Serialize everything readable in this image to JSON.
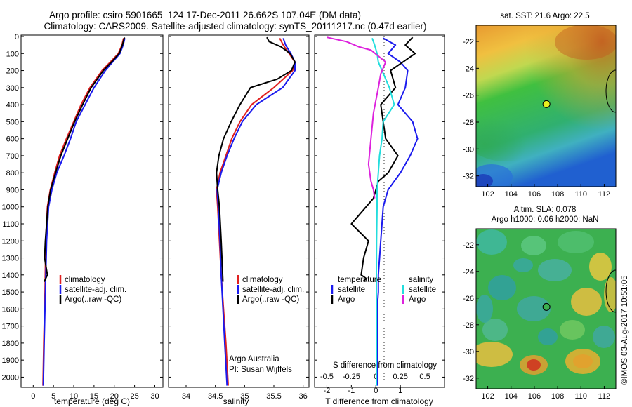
{
  "header": {
    "line1": "Argo profile: csiro 5901665_124 17-Dec-2011 26.662S 107.04E (DM data)",
    "line2": "Climatology: CARS2009. Satellite-adjusted climatology: synTS_20111217.nc (0.47d earlier)"
  },
  "colors": {
    "climatology": "#e02020",
    "satellite": "#1a1aee",
    "argo": "#000000",
    "sal_sat": "#22dddd",
    "sal_argo": "#dd22dd",
    "marker": "#e8f020"
  },
  "labels": {
    "credit_line1": "Argo Australia",
    "credit_line2": "PI: Susan Wijffels",
    "leg_temperature": "temperature",
    "leg_salinity": "salinity",
    "leg_satellite": "satellite",
    "leg_argo": "Argo",
    "diff_s": "S difference from climatology",
    "diff_t": "T difference from climatology",
    "imos": "©IMOS 03-Aug-2017 10:51:05",
    "sst_title": "sat. SST: 21.6 Argo: 22.5",
    "sla_title1": "Altim. SLA: 0.078",
    "sla_title2": "Argo h1000: 0.06 h2000: NaN"
  },
  "chart_data": [
    {
      "type": "line",
      "xlabel": "temperature (deg C)",
      "ylabel": "",
      "xlim": [
        -3,
        32
      ],
      "ylim": [
        2060,
        0
      ],
      "xticks": [
        0,
        5,
        10,
        15,
        20,
        25,
        30
      ],
      "yticks": [
        0,
        100,
        200,
        300,
        400,
        500,
        600,
        700,
        800,
        900,
        1000,
        1100,
        1200,
        1300,
        1400,
        1500,
        1600,
        1700,
        1800,
        1900,
        2000
      ],
      "legend": [
        "climatology",
        "satellite-adj. clim.",
        "Argo(..raw -QC)"
      ],
      "legend_position": "lower-middle",
      "series": [
        {
          "name": "climatology",
          "x": [
            22.3,
            21.9,
            21.0,
            19.0,
            17.0,
            14.0,
            11.8,
            10.0,
            8.2,
            6.5,
            5.3,
            4.2,
            3.5,
            3.1,
            2.9,
            2.6,
            2.4
          ],
          "y": [
            10,
            50,
            100,
            150,
            200,
            300,
            400,
            500,
            600,
            700,
            800,
            900,
            1000,
            1200,
            1500,
            1800,
            2050
          ]
        },
        {
          "name": "satellite-adj. clim.",
          "x": [
            22.6,
            22.2,
            21.4,
            19.6,
            17.8,
            15.0,
            12.8,
            10.6,
            9.2,
            7.6,
            5.8,
            4.6,
            3.8,
            3.3,
            3.0,
            2.7,
            2.5
          ],
          "y": [
            10,
            50,
            100,
            150,
            200,
            300,
            400,
            500,
            600,
            700,
            800,
            900,
            1000,
            1200,
            1500,
            1800,
            2050
          ]
        },
        {
          "name": "Argo(..raw -QC)",
          "x": [
            22.5,
            22.0,
            21.2,
            19.3,
            17.3,
            14.3,
            12.2,
            10.2,
            8.5,
            6.8,
            5.5,
            4.3,
            3.6,
            3.0,
            2.8,
            3.5,
            2.7
          ],
          "y": [
            5,
            50,
            100,
            150,
            200,
            300,
            400,
            500,
            600,
            700,
            800,
            900,
            1000,
            1200,
            1300,
            1400,
            1440
          ]
        }
      ]
    },
    {
      "type": "line",
      "xlabel": "salinity",
      "ylabel": "",
      "xlim": [
        33.7,
        36.1
      ],
      "ylim": [
        2060,
        0
      ],
      "xticks": [
        34,
        34.5,
        35,
        35.5,
        36
      ],
      "xtick_labels": [
        "34",
        "34.5",
        "35",
        "35.5",
        "36"
      ],
      "legend": [
        "climatology",
        "satellite-adj. clim.",
        "Argo(..raw -QC)"
      ],
      "legend_position": "lower-right",
      "series": [
        {
          "name": "climatology",
          "x": [
            35.6,
            35.66,
            35.76,
            35.86,
            35.82,
            35.5,
            35.12,
            34.92,
            34.78,
            34.68,
            34.58,
            34.52,
            34.54,
            34.57,
            34.6,
            34.64,
            34.68,
            34.72
          ],
          "y": [
            10,
            50,
            100,
            150,
            200,
            300,
            400,
            500,
            600,
            700,
            800,
            900,
            1000,
            1200,
            1400,
            1600,
            1800,
            2050
          ]
        },
        {
          "name": "satellite-adj. clim.",
          "x": [
            35.66,
            35.7,
            35.79,
            35.86,
            35.86,
            35.65,
            35.2,
            34.96,
            34.82,
            34.7,
            34.6,
            34.53,
            34.55,
            34.58,
            34.6,
            34.63,
            34.66,
            34.7
          ],
          "y": [
            10,
            50,
            100,
            150,
            200,
            300,
            400,
            500,
            600,
            700,
            800,
            900,
            1000,
            1200,
            1400,
            1600,
            1800,
            2050
          ]
        },
        {
          "name": "Argo(..raw -QC)",
          "x": [
            35.38,
            35.42,
            35.62,
            35.78,
            35.86,
            35.8,
            35.56,
            35.1,
            34.92,
            34.77,
            34.64,
            34.56,
            34.52,
            34.54,
            34.57,
            34.6,
            34.63
          ],
          "y": [
            5,
            30,
            60,
            100,
            150,
            200,
            250,
            300,
            400,
            500,
            600,
            700,
            800,
            900,
            1000,
            1200,
            1440
          ]
        }
      ]
    },
    {
      "type": "line",
      "xlabel": "T difference from climatology",
      "xlabel_top": "S difference from climatology",
      "ylabel": "",
      "xlim": [
        -2.5,
        2.8
      ],
      "ylim": [
        2060,
        0
      ],
      "xticks_t": [
        -2,
        -1,
        0,
        1
      ],
      "xticks_s": [
        -0.5,
        -0.25,
        0,
        0.25,
        0.5
      ],
      "xtick_s_labels": [
        "-0.5",
        "-0.25",
        "0",
        "0.25",
        "0.5"
      ],
      "legend_position": "lower-middle",
      "series": [
        {
          "name": "temperature satellite",
          "x": [
            0.3,
            0.8,
            0.5,
            1.0,
            1.3,
            1.2,
            0.9,
            1.5,
            1.7,
            1.4,
            1.0,
            0.5,
            0.3,
            0.2,
            0.1,
            0.1,
            0.05,
            0.05,
            0.05
          ],
          "y": [
            10,
            50,
            100,
            150,
            200,
            300,
            400,
            500,
            600,
            700,
            800,
            900,
            1000,
            1200,
            1400,
            1500,
            1600,
            1800,
            2050
          ]
        },
        {
          "name": "temperature Argo",
          "x": [
            1.5,
            1.2,
            1.6,
            1.1,
            0.6,
            0.8,
            0.2,
            0.3,
            0.4,
            0.9,
            0.5,
            0.1,
            -0.1,
            -1.0,
            -0.3,
            -0.5,
            -0.6,
            -0.4,
            -0.5
          ],
          "y": [
            5,
            50,
            100,
            150,
            200,
            300,
            400,
            500,
            600,
            700,
            800,
            850,
            950,
            1100,
            1200,
            1300,
            1400,
            1420,
            1440
          ]
        },
        {
          "name": "salinity satellite",
          "x": [
            -0.15,
            -0.05,
            0.05,
            0.1,
            0.25,
            0.55,
            0.75,
            0.3,
            0.25,
            0.15,
            0.1,
            0.05,
            0.05,
            0.03,
            0.02,
            0.02,
            0.02
          ],
          "y": [
            10,
            50,
            100,
            150,
            200,
            300,
            400,
            500,
            600,
            700,
            800,
            900,
            1000,
            1200,
            1400,
            1800,
            2050
          ]
        },
        {
          "name": "salinity Argo",
          "x": [
            -2.0,
            -1.2,
            -0.7,
            -0.2,
            0.4,
            0.2,
            0.1,
            -0.1,
            -0.2,
            -0.3,
            -0.2,
            -0.1,
            -0.05
          ],
          "y": [
            5,
            30,
            60,
            80,
            150,
            220,
            300,
            450,
            600,
            750,
            850,
            900,
            950
          ]
        }
      ]
    },
    {
      "type": "heatmap",
      "title": "sat. SST: 21.6 Argo: 22.5",
      "xlim": [
        101,
        113
      ],
      "ylim": [
        -32.8,
        -20.8
      ],
      "xticks": [
        102,
        104,
        106,
        108,
        110,
        112
      ],
      "yticks": [
        -22,
        -24,
        -26,
        -28,
        -30,
        -32
      ],
      "argo_position": {
        "lon": 107.04,
        "lat": -26.662
      }
    },
    {
      "type": "heatmap",
      "title": "Altim. SLA: 0.078 Argo h1000: 0.06 h2000: NaN",
      "xlim": [
        101,
        113
      ],
      "ylim": [
        -32.8,
        -20.8
      ],
      "xticks": [
        102,
        104,
        106,
        108,
        110,
        112
      ],
      "yticks": [
        -22,
        -24,
        -26,
        -28,
        -30,
        -32
      ],
      "argo_position": {
        "lon": 107.04,
        "lat": -26.662
      }
    }
  ]
}
